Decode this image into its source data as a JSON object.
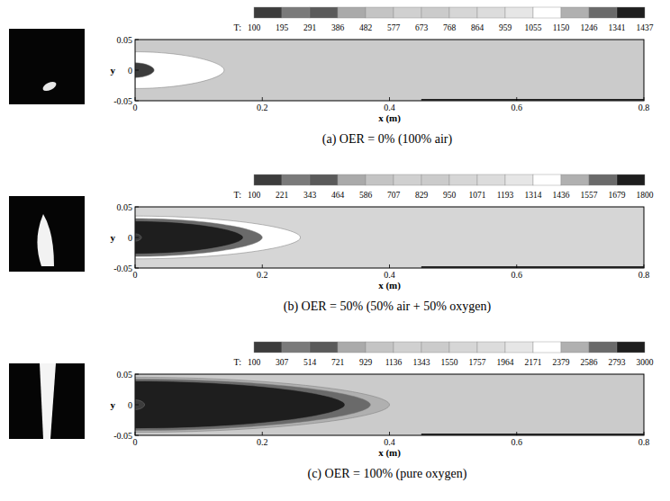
{
  "chart_data": [
    {
      "type": "contour",
      "title": "(a) OER = 0% (100% air)",
      "xlabel": "x (m)",
      "ylabel": "y",
      "xlim": [
        0,
        0.8
      ],
      "ylim": [
        -0.05,
        0.05
      ],
      "xticks": [
        0,
        0.2,
        0.4,
        0.6,
        0.8
      ],
      "yticks": [
        -0.05,
        0,
        0.05
      ],
      "colorbar_label": "T:",
      "colorbar_ticks": [
        100,
        195,
        291,
        386,
        482,
        577,
        673,
        768,
        864,
        959,
        1055,
        1150,
        1246,
        1341,
        1437
      ],
      "colors": [
        "#3c3c3c",
        "#7a7a7a",
        "#5a5a5a",
        "#aaaaaa",
        "#c4c4c4",
        "#d0d0d0",
        "#cbcbcb",
        "#d6d6d6",
        "#dcdcdc",
        "#e6e6e6",
        "#ffffff",
        "#b0b0b0",
        "#6a6a6a",
        "#1e1e1e"
      ],
      "field_level": 700,
      "isotherms": [
        {
          "level": 1100,
          "x_end": 0.14,
          "half_width": 0.03
        },
        {
          "level": 100,
          "x_end": 0.03,
          "half_width": 0.012
        }
      ]
    },
    {
      "type": "contour",
      "title": "(b) OER = 50% (50% air + 50% oxygen)",
      "xlabel": "x (m)",
      "ylabel": "y",
      "xlim": [
        0,
        0.8
      ],
      "ylim": [
        -0.05,
        0.05
      ],
      "xticks": [
        0,
        0.2,
        0.4,
        0.6,
        0.8
      ],
      "yticks": [
        -0.05,
        0,
        0.05
      ],
      "colorbar_label": "T:",
      "colorbar_ticks": [
        100,
        221,
        343,
        464,
        586,
        707,
        829,
        950,
        1071,
        1193,
        1314,
        1436,
        1557,
        1679,
        1800
      ],
      "colors": [
        "#3c3c3c",
        "#7a7a7a",
        "#5a5a5a",
        "#aaaaaa",
        "#c4c4c4",
        "#d0d0d0",
        "#cbcbcb",
        "#d6d6d6",
        "#dcdcdc",
        "#e6e6e6",
        "#ffffff",
        "#b0b0b0",
        "#6a6a6a",
        "#1e1e1e"
      ],
      "field_level": 1000,
      "isotherms": [
        {
          "level": 1350,
          "x_end": 0.26,
          "half_width": 0.035
        },
        {
          "level": 1600,
          "x_end": 0.2,
          "half_width": 0.031
        },
        {
          "level": 1750,
          "x_end": 0.17,
          "half_width": 0.027
        },
        {
          "level": 150,
          "x_end": 0.01,
          "half_width": 0.006
        }
      ]
    },
    {
      "type": "contour",
      "title": "(c) OER = 100% (pure oxygen)",
      "xlabel": "x (m)",
      "ylabel": "y",
      "xlim": [
        0,
        0.8
      ],
      "ylim": [
        -0.05,
        0.05
      ],
      "xticks": [
        0,
        0.2,
        0.4,
        0.6,
        0.8
      ],
      "yticks": [
        -0.05,
        0,
        0.05
      ],
      "colorbar_label": "T:",
      "colorbar_ticks": [
        100,
        307,
        514,
        721,
        929,
        1136,
        1343,
        1550,
        1757,
        1964,
        2171,
        2379,
        2586,
        2793,
        3000
      ],
      "colors": [
        "#3c3c3c",
        "#7a7a7a",
        "#5a5a5a",
        "#aaaaaa",
        "#c4c4c4",
        "#d0d0d0",
        "#cbcbcb",
        "#d6d6d6",
        "#dcdcdc",
        "#e6e6e6",
        "#ffffff",
        "#b0b0b0",
        "#6a6a6a",
        "#1e1e1e"
      ],
      "field_level": 1500,
      "isotherms": [
        {
          "level": 2400,
          "x_end": 0.4,
          "half_width": 0.045
        },
        {
          "level": 2700,
          "x_end": 0.37,
          "half_width": 0.042
        },
        {
          "level": 2900,
          "x_end": 0.33,
          "half_width": 0.039
        },
        {
          "level": 200,
          "x_end": 0.015,
          "half_width": 0.008
        }
      ]
    }
  ]
}
